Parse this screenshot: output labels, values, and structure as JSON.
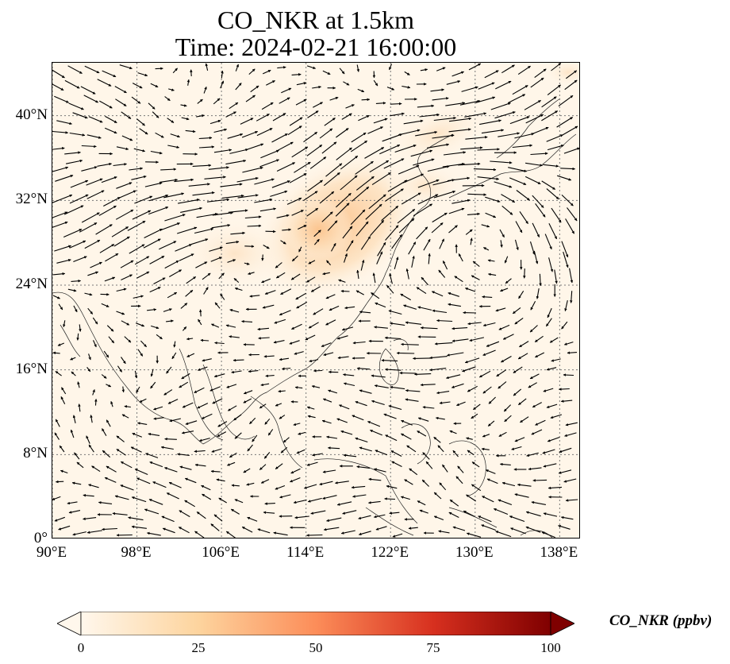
{
  "figure": {
    "title_line1": "CO_NKR at 1.5km",
    "title_line2": "Time: 2024-02-21 16:00:00"
  },
  "map": {
    "projection": "PlateCarree",
    "lon_range": [
      90,
      140
    ],
    "lat_range": [
      0,
      45
    ],
    "gridlines": "dotted",
    "colormap": "OrRd",
    "field_name": "CO_NKR",
    "background_color": "#fff6e9",
    "plume_color": "#fcc48e",
    "vector_color": "#000000"
  },
  "axes": {
    "lat_ticks": [
      {
        "value": 0,
        "label": "0°"
      },
      {
        "value": 8,
        "label": "8°N"
      },
      {
        "value": 16,
        "label": "16°N"
      },
      {
        "value": 24,
        "label": "24°N"
      },
      {
        "value": 32,
        "label": "32°N"
      },
      {
        "value": 40,
        "label": "40°N"
      }
    ],
    "lon_ticks": [
      {
        "value": 90,
        "label": "90°E"
      },
      {
        "value": 98,
        "label": "98°E"
      },
      {
        "value": 106,
        "label": "106°E"
      },
      {
        "value": 114,
        "label": "114°E"
      },
      {
        "value": 122,
        "label": "122°E"
      },
      {
        "value": 130,
        "label": "130°E"
      },
      {
        "value": 138,
        "label": "138°E"
      }
    ]
  },
  "colorbar": {
    "label": "CO_NKR (ppbv)",
    "range": [
      0,
      100
    ],
    "extend": "both",
    "ticks": [
      {
        "value": 0,
        "label": "0"
      },
      {
        "value": 25,
        "label": "25"
      },
      {
        "value": 50,
        "label": "50"
      },
      {
        "value": 75,
        "label": "75"
      },
      {
        "value": 100,
        "label": "100"
      }
    ],
    "stops": [
      "#fff7ec",
      "#fdd49e",
      "#fc8d59",
      "#d7301f",
      "#7f0000"
    ]
  }
}
